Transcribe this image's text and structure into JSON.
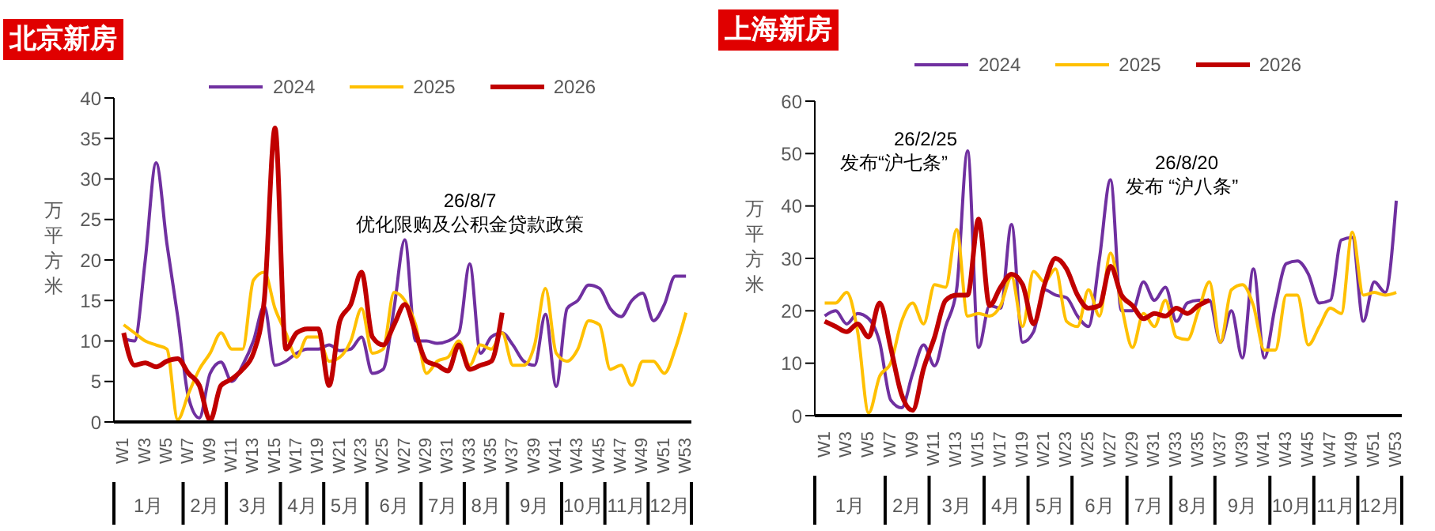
{
  "chart_data": [
    {
      "type": "line",
      "title": "北京新房",
      "ylabel": "万平方米",
      "legend": "top",
      "categories": [
        "W1",
        null,
        "W3",
        null,
        "W5",
        null,
        "W7",
        null,
        "W9",
        null,
        "W11",
        null,
        "W13",
        null,
        "W15",
        null,
        "W17",
        null,
        "W19",
        null,
        "W21",
        null,
        "W23",
        null,
        "W25",
        null,
        "W27",
        null,
        "W29",
        null,
        "W31",
        null,
        "W33",
        null,
        "W35",
        null,
        "W37",
        null,
        "W39",
        null,
        "W41",
        null,
        "W43",
        null,
        "W45",
        null,
        "W47",
        null,
        "W49",
        null,
        "W51",
        null,
        "W53"
      ],
      "ylim": [
        0,
        40
      ],
      "yticks": [
        0,
        5,
        10,
        15,
        20,
        25,
        30,
        35,
        40
      ],
      "series": [
        {
          "name": "2024",
          "color": "#7030a0",
          "values": [
            10.3,
            10,
            20,
            32,
            22,
            13,
            3,
            0.5,
            6,
            7.4,
            5,
            7,
            10,
            14.3,
            7,
            7.5,
            8.5,
            9,
            9,
            9.5,
            8.8,
            9,
            10.5,
            6,
            6.5,
            14,
            22.5,
            10,
            10,
            9.7,
            10,
            11,
            19.5,
            8.5,
            10.5,
            11,
            9.5,
            7.5,
            7,
            13.3,
            4.4,
            14,
            15,
            16.9,
            16.5,
            14,
            13,
            15,
            15.9,
            12.5,
            14.5,
            18,
            18
          ]
        },
        {
          "name": "2025",
          "color": "#ffc000",
          "values": [
            12,
            11,
            10,
            9.5,
            9,
            0.3,
            3.5,
            6.5,
            8.5,
            11,
            9,
            9,
            17.5,
            18.5,
            14,
            11,
            8,
            10.5,
            10.5,
            7.5,
            8,
            10,
            14,
            8.5,
            9,
            16,
            15,
            12,
            6,
            7.5,
            8,
            10,
            7,
            9.5,
            9,
            11,
            7,
            7,
            9.5,
            16.5,
            8.5,
            7.5,
            9,
            12.5,
            12,
            6.5,
            7,
            4.5,
            7.5,
            7.5,
            6,
            9,
            13.5
          ]
        },
        {
          "name": "2026",
          "color": "#c00000",
          "values": [
            11,
            7,
            7.3,
            6.8,
            7.5,
            7.8,
            6,
            4.5,
            0.2,
            4.5,
            5.3,
            6.5,
            8.5,
            15,
            36.3,
            9,
            11,
            11.5,
            11.5,
            4.5,
            12.5,
            14.5,
            18.5,
            10.5,
            9.5,
            12,
            14.5,
            11,
            7.5,
            7,
            6.3,
            9.5,
            6.5,
            7,
            7.5,
            13.5,
            null,
            null,
            null,
            null,
            null,
            null,
            null,
            null,
            null,
            null,
            null,
            null,
            null,
            null,
            null,
            null,
            null
          ]
        }
      ],
      "annotations": [
        "26/8/7",
        "优化限购及公积金贷款政策",
        "1月",
        "2月",
        "3月",
        "4月",
        "5月",
        "6月",
        "7月",
        "8月",
        "9月",
        "10月",
        "11月",
        "12月"
      ]
    },
    {
      "type": "line",
      "title": "上海新房",
      "ylabel": "万平方米",
      "legend": "top",
      "categories": [
        "W1",
        null,
        "W3",
        null,
        "W5",
        null,
        "W7",
        null,
        "W9",
        null,
        "W11",
        null,
        "W13",
        null,
        "W15",
        null,
        "W17",
        null,
        "W19",
        null,
        "W21",
        null,
        "W23",
        null,
        "W25",
        null,
        "W27",
        null,
        "W29",
        null,
        "W31",
        null,
        "W33",
        null,
        "W35",
        null,
        "W37",
        null,
        "W39",
        null,
        "W41",
        null,
        "W43",
        null,
        "W45",
        null,
        "W47",
        null,
        "W49",
        null,
        "W51",
        null,
        "W53"
      ],
      "ylim": [
        0,
        60
      ],
      "yticks": [
        0,
        10,
        20,
        30,
        40,
        50,
        60
      ],
      "series": [
        {
          "name": "2024",
          "color": "#7030a0",
          "values": [
            19,
            20,
            17.5,
            19.5,
            18.5,
            14,
            3,
            1.5,
            8,
            13.5,
            9.5,
            17,
            24,
            50.5,
            13,
            21,
            20.5,
            36.5,
            14,
            16,
            24,
            23,
            22.5,
            19,
            17,
            30,
            45,
            20,
            20,
            25.5,
            22,
            24.5,
            18,
            21.5,
            22,
            22,
            14,
            20,
            11,
            28,
            11,
            21,
            29,
            29.5,
            27,
            21.5,
            22,
            33.5,
            34,
            18,
            25.5,
            23.5,
            41
          ]
        },
        {
          "name": "2025",
          "color": "#ffc000",
          "values": [
            21.5,
            21.5,
            23.5,
            16,
            0.5,
            7.5,
            10,
            18,
            21.5,
            17.5,
            25,
            24.5,
            35.5,
            19,
            19.5,
            19,
            21,
            26.5,
            17,
            27.5,
            25.5,
            28,
            18,
            17,
            24,
            19,
            31,
            21,
            13,
            19.5,
            17,
            22,
            15,
            14.5,
            20,
            25.5,
            14,
            24,
            25,
            21,
            12.5,
            12.5,
            23,
            23,
            13.5,
            17,
            20.5,
            19.5,
            35,
            23,
            23.5,
            23,
            23.5
          ]
        },
        {
          "name": "2026",
          "color": "#c00000",
          "values": [
            18,
            17,
            16,
            17.5,
            15,
            21.5,
            13,
            4,
            1,
            9,
            15,
            22,
            23,
            23,
            37.5,
            21,
            24.5,
            27,
            25,
            17.5,
            25,
            30,
            28,
            23,
            20.5,
            21,
            28.5,
            23,
            21,
            18.5,
            19.5,
            19,
            20.5,
            19.5,
            21,
            22,
            null,
            null,
            null,
            null,
            null,
            null,
            null,
            null,
            null,
            null,
            null,
            null,
            null,
            null,
            null,
            null,
            null
          ]
        }
      ],
      "annotations": [
        "26/2/25",
        "发布“沪七条”",
        "26/8/20",
        "发布 “沪八条”",
        "1月",
        "2月",
        "3月",
        "4月",
        "5月",
        "6月",
        "7月",
        "8月",
        "9月",
        "10月",
        "11月",
        "12月"
      ]
    }
  ]
}
